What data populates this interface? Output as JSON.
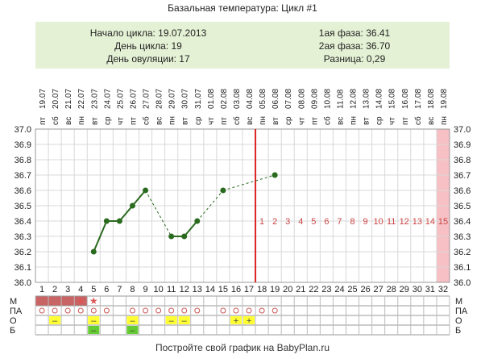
{
  "title": "Базальная температура: Цикл #1",
  "info": {
    "cycle_start": "Начало цикла: 19.07.2013",
    "cycle_day": "День цикла: 19",
    "ovulation_day": "День овуляции: 17",
    "phase1": "1ая фаза: 36.41",
    "phase2": "2ая фаза: 36.70",
    "difference": "Разница: 0,29"
  },
  "footer": "Постройте свой график на BabyPlan.ru",
  "colors": {
    "line": "#2a6a1f",
    "grid": "#d8d8d8",
    "ovulation_line": "#dd2222",
    "pink": "#f7c0c4",
    "menses": "#c86464",
    "phase_numbers": "#cc4444",
    "yellow": "#ffff33",
    "green": "#66cc33",
    "star": "#dd5555",
    "circle": "#cc5555"
  },
  "chart_data": {
    "type": "line",
    "y_range": [
      36.0,
      37.0
    ],
    "y_ticks": [
      "37.0",
      "36.9",
      "36.8",
      "36.7",
      "36.6",
      "36.5",
      "36.4",
      "36.3",
      "36.2",
      "36.1",
      "36.0"
    ],
    "cycle_days": [
      "1",
      "2",
      "3",
      "4",
      "5",
      "6",
      "7",
      "8",
      "9",
      "10",
      "11",
      "12",
      "13",
      "14",
      "15",
      "16",
      "17",
      "18",
      "19",
      "20",
      "21",
      "22",
      "23",
      "24",
      "25",
      "26",
      "27",
      "28",
      "29",
      "30",
      "31",
      "32"
    ],
    "weekdays": [
      "пт",
      "сб",
      "вс",
      "пн",
      "вт",
      "ср",
      "чт",
      "пт",
      "сб",
      "вс",
      "пн",
      "вт",
      "ср",
      "чт",
      "пт",
      "сб",
      "вс",
      "пн",
      "вт",
      "ср",
      "чт",
      "пт",
      "сб",
      "вс",
      "пн",
      "вт",
      "ср",
      "чт",
      "пт",
      "сб",
      "вс",
      "пн"
    ],
    "dates": [
      "19.07",
      "20.07",
      "21.07",
      "22.07",
      "23.07",
      "24.07",
      "25.07",
      "26.07",
      "27.07",
      "28.07",
      "29.07",
      "30.07",
      "31.07",
      "01.08",
      "02.08",
      "03.08",
      "04.08",
      "05.08",
      "06.08",
      "07.08",
      "08.08",
      "09.08",
      "10.08",
      "11.08",
      "12.08",
      "13.08",
      "14.08",
      "15.08",
      "16.08",
      "17.08",
      "18.08",
      "19.08"
    ],
    "temperatures": [
      null,
      null,
      null,
      null,
      36.2,
      36.4,
      36.4,
      36.5,
      36.6,
      null,
      36.3,
      36.3,
      36.4,
      null,
      36.6,
      null,
      null,
      null,
      36.7,
      null,
      null,
      null,
      null,
      null,
      null,
      null,
      null,
      null,
      null,
      null,
      null,
      null
    ],
    "ovulation_day": 17,
    "highlight_day": 32,
    "phase_day_numbers": [
      "1",
      "2",
      "3",
      "4",
      "5",
      "6",
      "7",
      "8",
      "9",
      "10",
      "11",
      "12",
      "13",
      "14",
      "15"
    ],
    "phase_day_start": 18,
    "phase_numbers_value": 36.38,
    "marker_rows": {
      "labels": [
        "М",
        "ПА",
        "О",
        "Б"
      ],
      "menses_days": [
        1,
        2,
        3,
        4
      ],
      "star_days": [
        4,
        5
      ],
      "pa_days": [
        1,
        2,
        3,
        4,
        5,
        6,
        8,
        9,
        10,
        11,
        12,
        13,
        15,
        16,
        17,
        18,
        19
      ],
      "o_signs": {
        "2": "–",
        "5": "–",
        "8": "–",
        "11": "–",
        "12": "–",
        "16": "+",
        "17": "+"
      },
      "o_yellow_days": [
        2,
        5,
        8,
        11,
        12,
        16,
        17
      ],
      "b_green_days": [
        5,
        8
      ],
      "b_signs": {
        "5": "–",
        "8": "–"
      }
    }
  }
}
